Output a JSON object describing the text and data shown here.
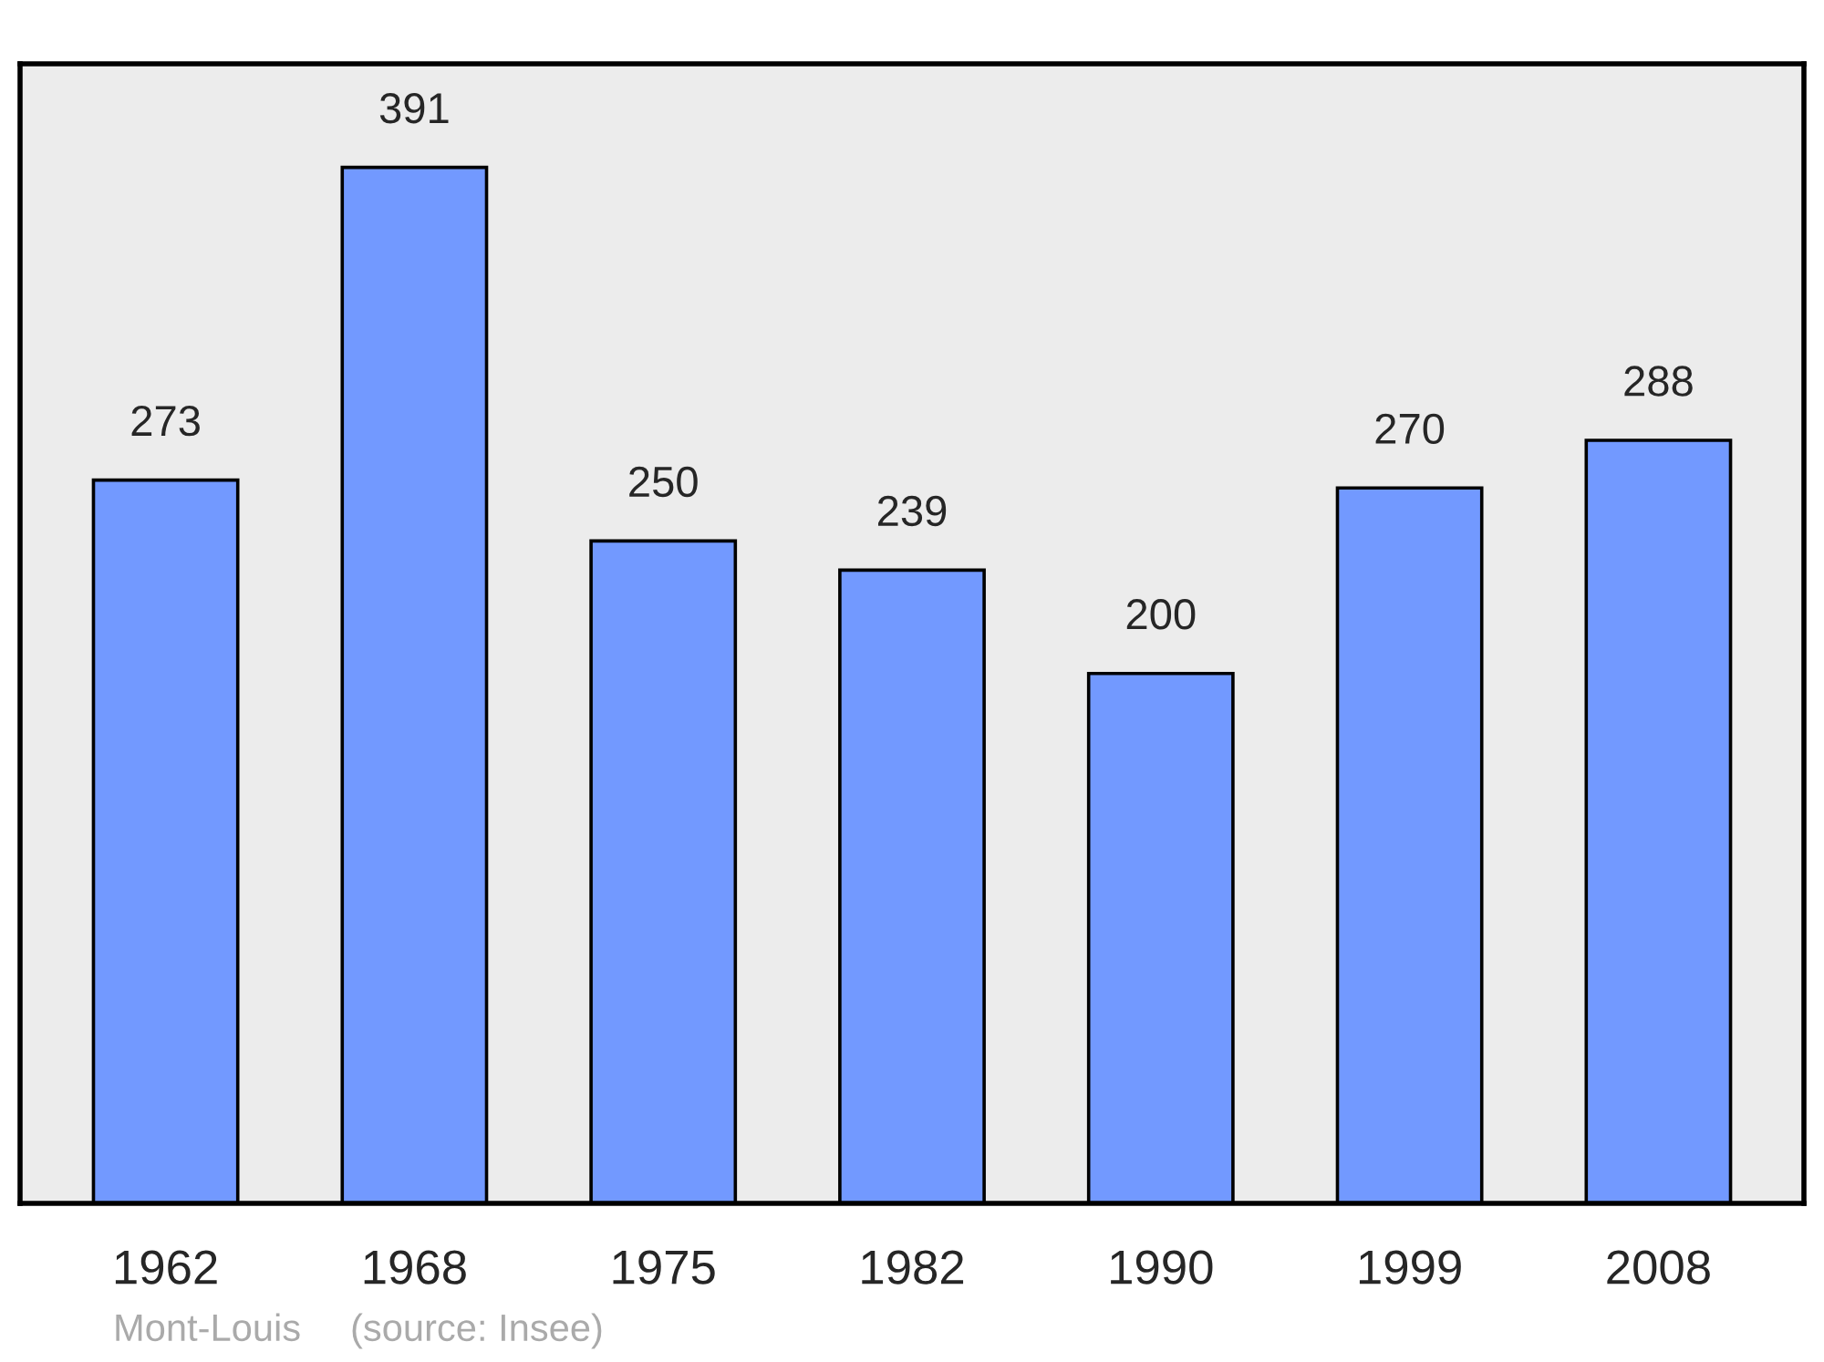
{
  "chart_data": {
    "type": "bar",
    "categories": [
      "1962",
      "1968",
      "1975",
      "1982",
      "1990",
      "1999",
      "2008"
    ],
    "values": [
      273,
      391,
      250,
      239,
      200,
      270,
      288
    ],
    "color": "#7299ff",
    "data_labels": true,
    "grid": false,
    "legend": false,
    "annotations": [
      "Mont-Louis",
      "(source: Insee)"
    ]
  }
}
